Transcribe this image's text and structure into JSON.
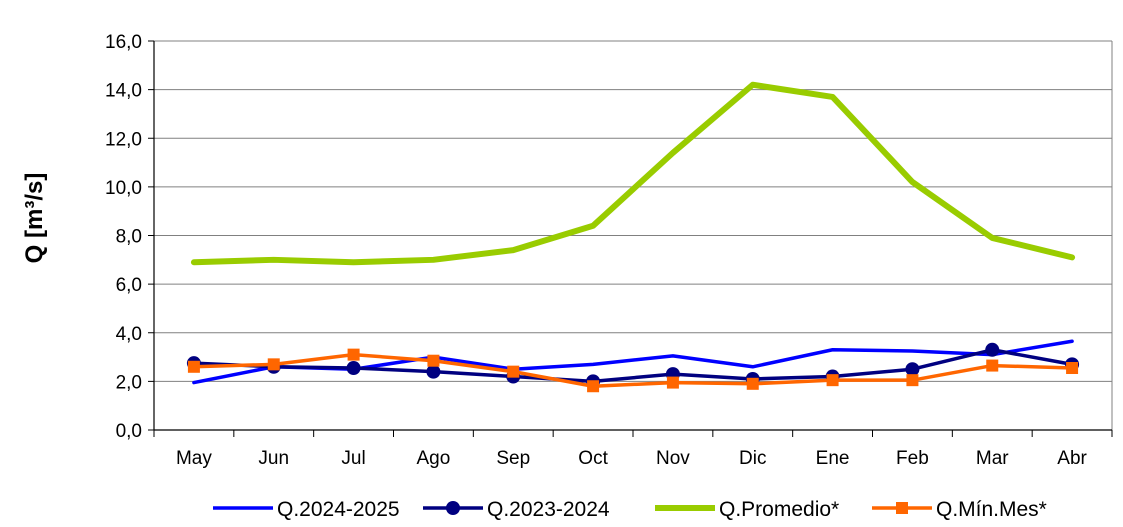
{
  "chart_data": {
    "type": "line",
    "ylabel": "Q [m³/s]",
    "categories": [
      "May",
      "Jun",
      "Jul",
      "Ago",
      "Sep",
      "Oct",
      "Nov",
      "Dic",
      "Ene",
      "Feb",
      "Mar",
      "Abr"
    ],
    "ylim": [
      0,
      16
    ],
    "yticks": [
      "0,0",
      "2,0",
      "4,0",
      "6,0",
      "8,0",
      "10,0",
      "12,0",
      "14,0",
      "16,0"
    ],
    "grid": true,
    "legend_position": "bottom",
    "series": [
      {
        "name": "Q.2024-2025",
        "color": "#0000ff",
        "marker": "none",
        "values": [
          1.95,
          2.6,
          2.5,
          3.0,
          2.5,
          2.7,
          3.05,
          2.6,
          3.3,
          3.25,
          3.1,
          3.65
        ]
      },
      {
        "name": "Q.2023-2024",
        "color": "#000080",
        "marker": "circle",
        "values": [
          2.75,
          2.6,
          2.55,
          2.4,
          2.2,
          2.0,
          2.3,
          2.1,
          2.2,
          2.5,
          3.3,
          2.7
        ]
      },
      {
        "name": "Q.Promedio*",
        "color": "#99cc00",
        "marker": "none",
        "values": [
          6.9,
          7.0,
          6.9,
          7.0,
          7.4,
          8.4,
          11.4,
          14.2,
          13.7,
          10.2,
          7.9,
          7.1
        ]
      },
      {
        "name": "Q.Mín.Mes*",
        "color": "#ff6600",
        "marker": "square",
        "values": [
          2.6,
          2.7,
          3.1,
          2.85,
          2.4,
          1.8,
          1.95,
          1.9,
          2.05,
          2.05,
          2.65,
          2.55
        ]
      }
    ]
  }
}
